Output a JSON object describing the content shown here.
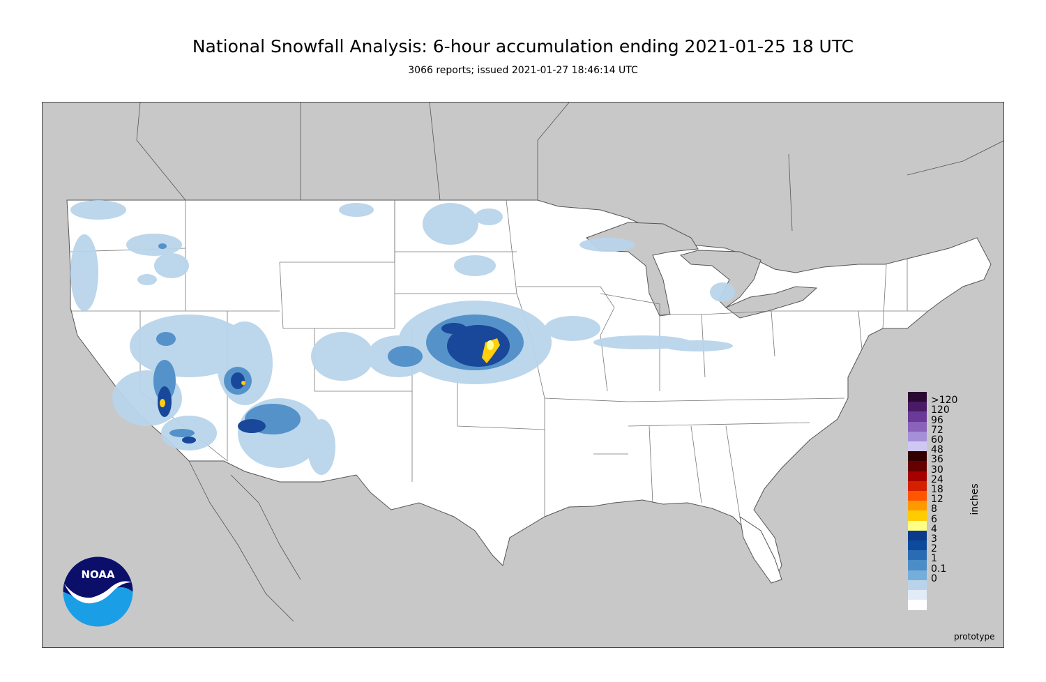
{
  "header": {
    "title": "National Snowfall Analysis: 6-hour accumulation ending 2021-01-25 18 UTC",
    "subtitle": "3066 reports; issued 2021-01-27 18:46:14 UTC"
  },
  "legend": {
    "units": "inches",
    "entries": [
      {
        "label": ">120",
        "color": "#2a0a33"
      },
      {
        "label": "120",
        "color": "#4b1a66"
      },
      {
        "label": "96",
        "color": "#6a3a99"
      },
      {
        "label": "72",
        "color": "#8a62bb"
      },
      {
        "label": "60",
        "color": "#a58fd8"
      },
      {
        "label": "48",
        "color": "#cfc8f3"
      },
      {
        "label": "36",
        "color": "#330000"
      },
      {
        "label": "30",
        "color": "#660000"
      },
      {
        "label": "24",
        "color": "#a60000"
      },
      {
        "label": "18",
        "color": "#d52000"
      },
      {
        "label": "12",
        "color": "#ff5500"
      },
      {
        "label": "8",
        "color": "#ff9900"
      },
      {
        "label": "6",
        "color": "#ffcc00"
      },
      {
        "label": "4",
        "color": "#ffff88"
      },
      {
        "label": "3",
        "color": "#0b3a8c"
      },
      {
        "label": "2",
        "color": "#0d4a9c"
      },
      {
        "label": "1",
        "color": "#2a6cb4"
      },
      {
        "label": "0.1",
        "color": "#4c8dc8"
      },
      {
        "label": "0",
        "color": "#76aedb"
      },
      {
        "label": "",
        "color": "#b9d4ea"
      },
      {
        "label": "",
        "color": "#e2ecf6"
      },
      {
        "label": "",
        "color": "#ffffff"
      }
    ]
  },
  "map": {
    "colors": {
      "background": "#c8c8c8",
      "land": "#ffffff",
      "boundary": "#555555",
      "light_snow": "#b9d4ea",
      "moderate_snow": "#4c8dc8",
      "heavy_snow": "#0d3e94",
      "very_heavy": "#ffcc00",
      "extreme": "#ffff88"
    }
  },
  "footer": {
    "prototype_label": "prototype",
    "logo_text": "NOAA"
  }
}
